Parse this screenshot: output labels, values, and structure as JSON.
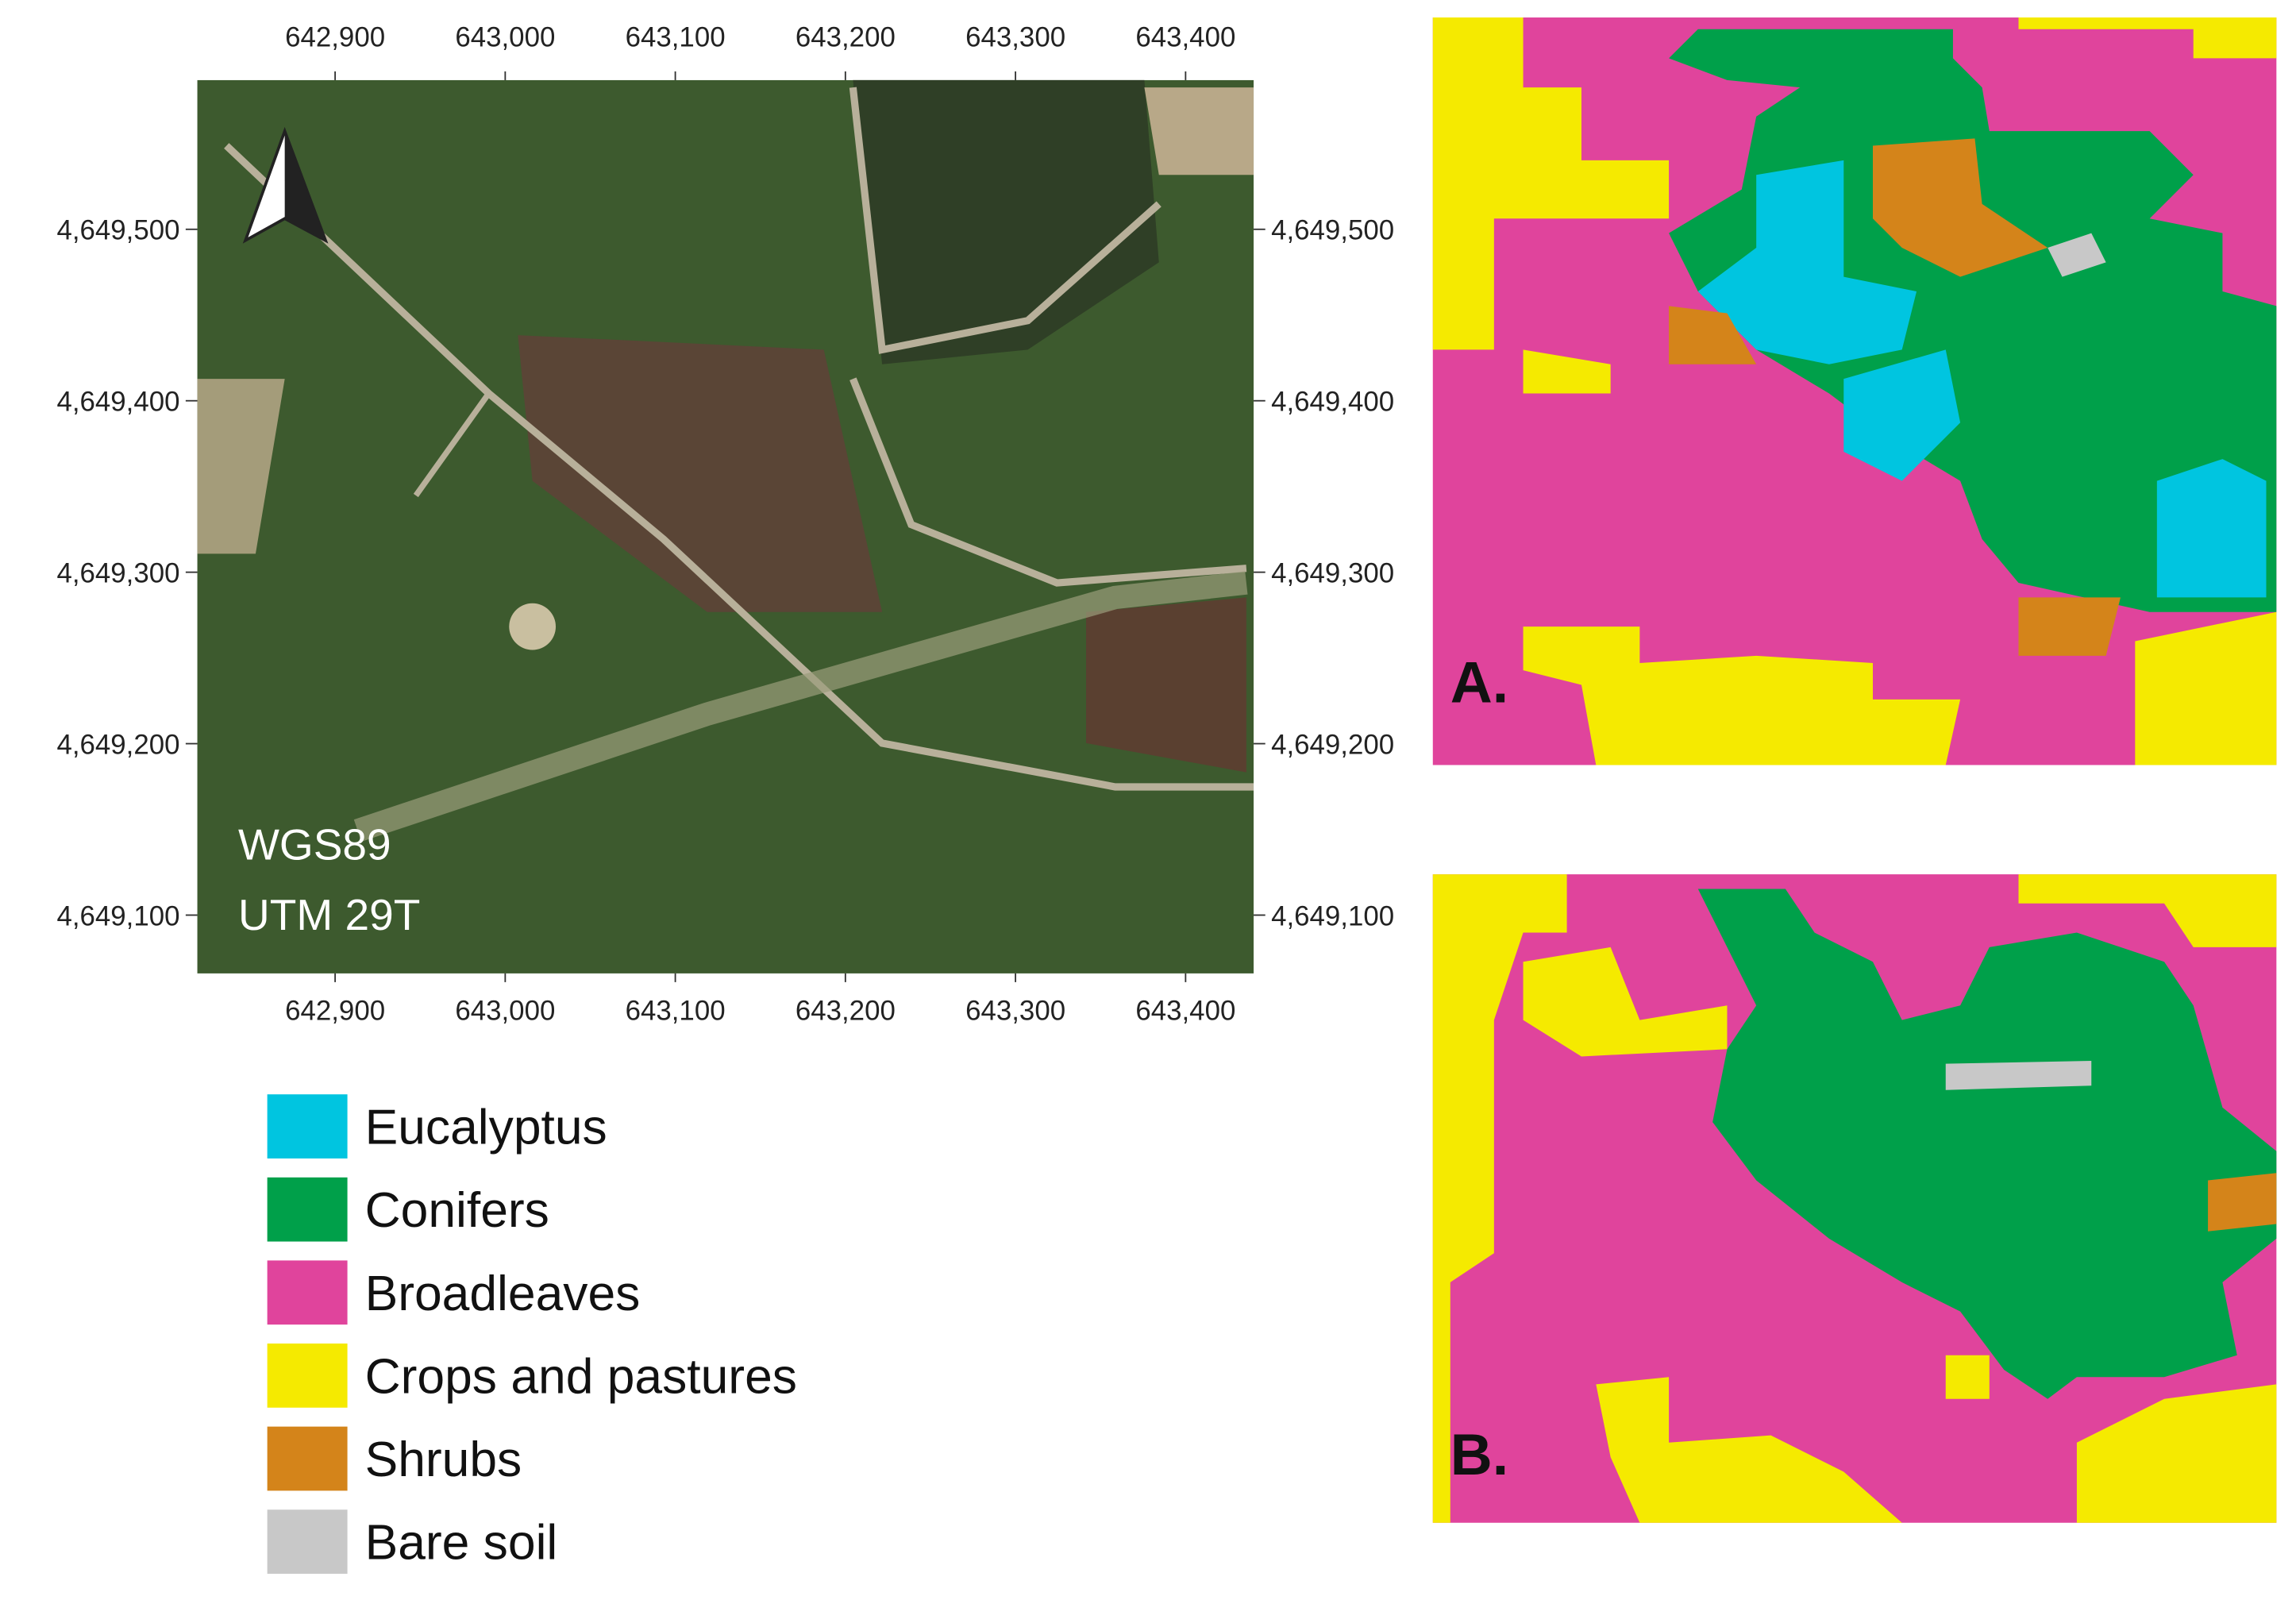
{
  "map": {
    "xlim": [
      642819,
      643440
    ],
    "ylim": [
      4649066,
      4649587
    ],
    "xticks": [
      {
        "value": 642900,
        "label": "642,900"
      },
      {
        "value": 643000,
        "label": "643,000"
      },
      {
        "value": 643100,
        "label": "643,100"
      },
      {
        "value": 643200,
        "label": "643,200"
      },
      {
        "value": 643300,
        "label": "643,300"
      },
      {
        "value": 643400,
        "label": "643,400"
      }
    ],
    "yticks": [
      {
        "value": 4649500,
        "label": "4,649,500"
      },
      {
        "value": 4649400,
        "label": "4,649,400"
      },
      {
        "value": 4649300,
        "label": "4,649,300"
      },
      {
        "value": 4649200,
        "label": "4,649,200"
      },
      {
        "value": 4649100,
        "label": "4,649,100"
      }
    ],
    "crs_label": [
      "WGS89",
      "UTM 29T"
    ]
  },
  "legend": [
    {
      "name": "Eucalyptus",
      "color": "#00c5e0"
    },
    {
      "name": "Conifers",
      "color": "#00a04a"
    },
    {
      "name": "Broadleaves",
      "color": "#e0449c"
    },
    {
      "name": "Crops and pastures",
      "color": "#f5ea00"
    },
    {
      "name": "Shrubs",
      "color": "#d4841a"
    },
    {
      "name": "Bare soil",
      "color": "#c8c8c8"
    }
  ],
  "panels": [
    {
      "label": "A."
    },
    {
      "label": "B."
    }
  ]
}
